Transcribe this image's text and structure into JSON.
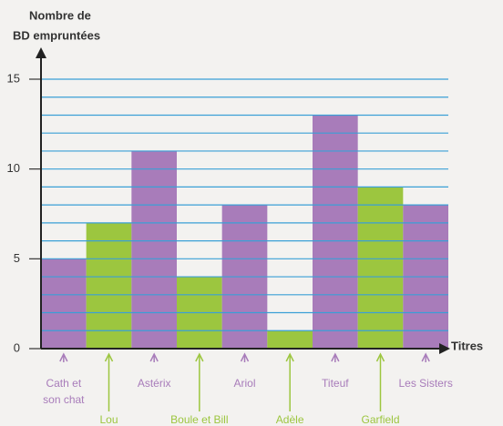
{
  "chart_data": {
    "type": "bar",
    "y_axis_title": [
      "Nombre de",
      "BD empruntées"
    ],
    "x_axis_title": "Titres",
    "categories": [
      "Cath et son chat",
      "Lou",
      "Astérix",
      "Boule et Bill",
      "Ariol",
      "Adèle",
      "Titeuf",
      "Garfield",
      "Les Sisters"
    ],
    "values": [
      5,
      7,
      11,
      4,
      8,
      1,
      13,
      9,
      8
    ],
    "colors": [
      "#a87cba",
      "#9cc63f",
      "#a87cba",
      "#9cc63f",
      "#a87cba",
      "#9cc63f",
      "#a87cba",
      "#9cc63f",
      "#a87cba"
    ],
    "ylim": [
      0,
      15
    ],
    "yticks": [
      0,
      5,
      10,
      15
    ],
    "grid_lines": [
      1,
      2,
      3,
      4,
      5,
      6,
      7,
      8,
      9,
      10,
      11,
      12,
      13,
      14,
      15
    ],
    "grid_color": "#3a9fd6"
  }
}
